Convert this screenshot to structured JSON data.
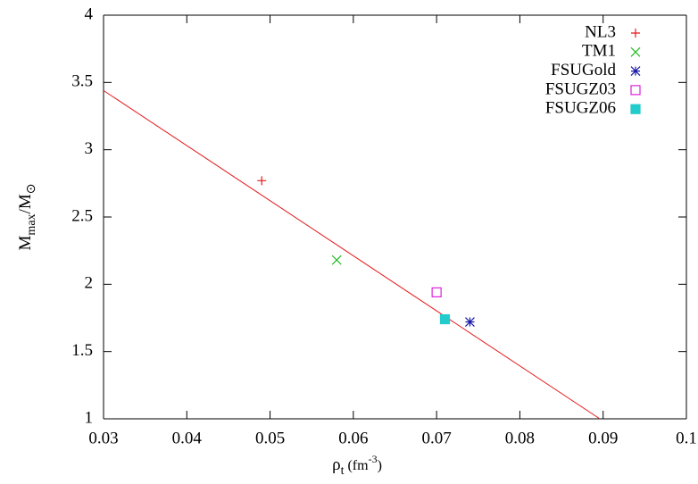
{
  "chart_data": {
    "type": "scatter",
    "x_label": {
      "base": "ρ",
      "sub": "t",
      "rest": " (fm",
      "sup": "-3",
      "end": ")"
    },
    "y_label": {
      "base": "M",
      "sub": "max",
      "rest": "/M",
      "sub2": "⊙"
    },
    "series": [
      {
        "name": "NL3",
        "color": "#e41a1c",
        "marker": "plus",
        "x": [
          0.049
        ],
        "values": [
          2.77
        ]
      },
      {
        "name": "TM1",
        "color": "#22bb22",
        "marker": "cross",
        "x": [
          0.058
        ],
        "values": [
          2.18
        ]
      },
      {
        "name": "FSUGold",
        "color": "#1a1aaa",
        "marker": "star",
        "x": [
          0.074
        ],
        "values": [
          1.72
        ]
      },
      {
        "name": "FSUGZ03",
        "color": "#dd22dd",
        "marker": "open-square",
        "x": [
          0.07
        ],
        "values": [
          1.94
        ]
      },
      {
        "name": "FSUGZ06",
        "color": "#22cccc",
        "marker": "filled-square",
        "x": [
          0.071
        ],
        "values": [
          1.74
        ]
      }
    ],
    "fit": {
      "color": "#e41a1c",
      "x": [
        0.03,
        0.0896
      ],
      "values": [
        3.44,
        1.0
      ]
    },
    "xlim": [
      0.03,
      0.1
    ],
    "ylim": [
      1,
      4
    ],
    "xticks": [
      0.03,
      0.04,
      0.05,
      0.06,
      0.07,
      0.08,
      0.09,
      0.1
    ],
    "yticks": [
      1,
      1.5,
      2,
      2.5,
      3,
      3.5,
      4
    ],
    "grid": false,
    "legend": "top-right"
  }
}
